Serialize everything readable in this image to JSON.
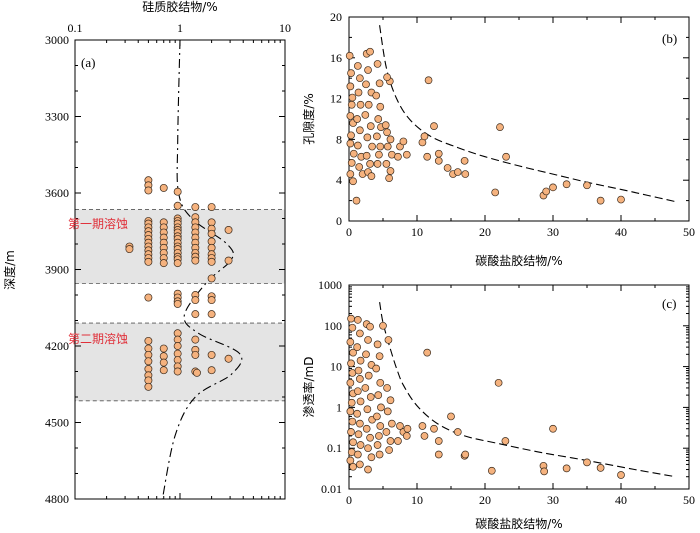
{
  "chart_data": [
    {
      "id": "a",
      "type": "scatter",
      "panel_label": "(a)",
      "xlabel": "硅质胶结物/%",
      "ylabel": "深度/m",
      "x_scale": "log",
      "xlim": [
        0.1,
        10
      ],
      "ylim": [
        3000,
        4800
      ],
      "y_inverted": true,
      "x_axis_position": "top",
      "x_tick_labels": [
        "0.1",
        "1",
        "10"
      ],
      "y_tick_labels": [
        "3000",
        "3300",
        "3600",
        "3900",
        "4200",
        "4500",
        "4800"
      ],
      "zones": [
        {
          "label": "第一期溶蚀",
          "depth_from": 3665,
          "depth_to": 3955
        },
        {
          "label": "第二期溶蚀",
          "depth_from": 4110,
          "depth_to": 4415
        }
      ],
      "trend_curve": {
        "style": "dash-dot",
        "points": [
          [
            1.0,
            3000
          ],
          [
            0.95,
            3400
          ],
          [
            0.97,
            3600
          ],
          [
            1.3,
            3700
          ],
          [
            2.8,
            3800
          ],
          [
            3.1,
            3860
          ],
          [
            1.8,
            3950
          ],
          [
            1.1,
            4080
          ],
          [
            1.5,
            4150
          ],
          [
            3.7,
            4230
          ],
          [
            3.1,
            4310
          ],
          [
            1.4,
            4400
          ],
          [
            0.9,
            4550
          ],
          [
            0.68,
            4800
          ]
        ]
      },
      "points": [
        [
          0.5,
          3550
        ],
        [
          0.5,
          3570
        ],
        [
          0.5,
          3590
        ],
        [
          0.7,
          3580
        ],
        [
          0.95,
          3595
        ],
        [
          0.95,
          3650
        ],
        [
          1.4,
          3655
        ],
        [
          2.0,
          3655
        ],
        [
          0.5,
          3710
        ],
        [
          0.5,
          3720
        ],
        [
          0.5,
          3735
        ],
        [
          0.5,
          3750
        ],
        [
          0.5,
          3765
        ],
        [
          0.5,
          3780
        ],
        [
          0.5,
          3795
        ],
        [
          0.5,
          3810
        ],
        [
          0.5,
          3825
        ],
        [
          0.5,
          3840
        ],
        [
          0.5,
          3855
        ],
        [
          0.5,
          3870
        ],
        [
          0.33,
          3810
        ],
        [
          0.33,
          3820
        ],
        [
          0.7,
          3715
        ],
        [
          0.7,
          3735
        ],
        [
          0.7,
          3755
        ],
        [
          0.7,
          3775
        ],
        [
          0.7,
          3795
        ],
        [
          0.7,
          3815
        ],
        [
          0.7,
          3835
        ],
        [
          0.7,
          3855
        ],
        [
          0.7,
          3875
        ],
        [
          0.95,
          3700
        ],
        [
          0.95,
          3710
        ],
        [
          0.95,
          3720
        ],
        [
          0.95,
          3735
        ],
        [
          0.95,
          3745
        ],
        [
          0.95,
          3755
        ],
        [
          0.95,
          3770
        ],
        [
          0.95,
          3780
        ],
        [
          0.95,
          3795
        ],
        [
          0.95,
          3810
        ],
        [
          0.95,
          3820
        ],
        [
          0.95,
          3835
        ],
        [
          0.95,
          3850
        ],
        [
          0.95,
          3860
        ],
        [
          0.95,
          3875
        ],
        [
          1.4,
          3695
        ],
        [
          1.4,
          3715
        ],
        [
          1.4,
          3735
        ],
        [
          1.4,
          3755
        ],
        [
          1.4,
          3775
        ],
        [
          1.4,
          3795
        ],
        [
          1.4,
          3815
        ],
        [
          1.4,
          3835
        ],
        [
          1.4,
          3850
        ],
        [
          1.4,
          3865
        ],
        [
          2.0,
          3715
        ],
        [
          2.0,
          3740
        ],
        [
          2.0,
          3760
        ],
        [
          2.0,
          3790
        ],
        [
          2.0,
          3815
        ],
        [
          2.0,
          3840
        ],
        [
          2.0,
          3855
        ],
        [
          2.0,
          3870
        ],
        [
          2.9,
          3745
        ],
        [
          2.9,
          3865
        ],
        [
          2.0,
          3935
        ],
        [
          0.5,
          4010
        ],
        [
          0.95,
          3995
        ],
        [
          0.95,
          4010
        ],
        [
          0.95,
          4025
        ],
        [
          0.95,
          4035
        ],
        [
          1.4,
          4000
        ],
        [
          1.4,
          4020
        ],
        [
          2.0,
          4005
        ],
        [
          2.0,
          4020
        ],
        [
          1.4,
          4075
        ],
        [
          2.0,
          4075
        ],
        [
          0.5,
          4180
        ],
        [
          0.5,
          4210
        ],
        [
          0.5,
          4235
        ],
        [
          0.5,
          4260
        ],
        [
          0.5,
          4290
        ],
        [
          0.5,
          4315
        ],
        [
          0.5,
          4335
        ],
        [
          0.5,
          4360
        ],
        [
          0.7,
          4210
        ],
        [
          0.7,
          4240
        ],
        [
          0.7,
          4265
        ],
        [
          0.7,
          4295
        ],
        [
          0.95,
          4150
        ],
        [
          0.95,
          4175
        ],
        [
          0.95,
          4200
        ],
        [
          0.95,
          4230
        ],
        [
          0.95,
          4255
        ],
        [
          0.95,
          4280
        ],
        [
          0.95,
          4300
        ],
        [
          1.4,
          4175
        ],
        [
          1.4,
          4215
        ],
        [
          1.4,
          4235
        ],
        [
          1.4,
          4300
        ],
        [
          1.45,
          4305
        ],
        [
          2.0,
          4235
        ],
        [
          2.0,
          4295
        ],
        [
          2.9,
          4250
        ]
      ]
    },
    {
      "id": "b",
      "type": "scatter",
      "panel_label": "(b)",
      "xlabel": "碳酸盐胶结物/%",
      "ylabel": "孔隙度/%",
      "xlim": [
        0,
        50
      ],
      "ylim": [
        0,
        20
      ],
      "x_tick_labels": [
        "0",
        "10",
        "20",
        "30",
        "40",
        "50"
      ],
      "y_tick_labels": [
        "0",
        "4",
        "8",
        "12",
        "16",
        "20"
      ],
      "trend_curve": {
        "style": "dash",
        "points": [
          [
            4.5,
            19.2
          ],
          [
            5.5,
            15
          ],
          [
            7,
            12
          ],
          [
            9,
            9.9
          ],
          [
            12,
            8.3
          ],
          [
            16,
            7.2
          ],
          [
            20,
            6.3
          ],
          [
            25,
            5.4
          ],
          [
            30,
            4.6
          ],
          [
            35,
            3.8
          ],
          [
            40,
            3.1
          ],
          [
            44,
            2.5
          ],
          [
            48,
            1.9
          ]
        ]
      },
      "points": [
        [
          0.1,
          16.2
        ],
        [
          0.3,
          14.5
        ],
        [
          0.2,
          13.2
        ],
        [
          0.5,
          12.1
        ],
        [
          0.4,
          11.4
        ],
        [
          0.2,
          10.3
        ],
        [
          0.6,
          9.6
        ],
        [
          0.3,
          8.4
        ],
        [
          0.2,
          7.6
        ],
        [
          0.7,
          6.6
        ],
        [
          0.4,
          5.7
        ],
        [
          0.2,
          4.6
        ],
        [
          0.6,
          3.9
        ],
        [
          1.1,
          2.0
        ],
        [
          1.3,
          15.2
        ],
        [
          1.6,
          14.0
        ],
        [
          1.4,
          12.6
        ],
        [
          1.7,
          11.4
        ],
        [
          1.2,
          10.0
        ],
        [
          1.6,
          8.9
        ],
        [
          1.3,
          7.4
        ],
        [
          1.8,
          6.3
        ],
        [
          1.5,
          5.3
        ],
        [
          2.0,
          4.6
        ],
        [
          2.6,
          16.4
        ],
        [
          3.1,
          16.6
        ],
        [
          2.8,
          14.8
        ],
        [
          2.5,
          13.4
        ],
        [
          3.3,
          12.6
        ],
        [
          2.9,
          11.4
        ],
        [
          2.4,
          10.4
        ],
        [
          3.2,
          9.3
        ],
        [
          2.7,
          8.2
        ],
        [
          3.4,
          7.3
        ],
        [
          2.6,
          6.4
        ],
        [
          3.1,
          5.6
        ],
        [
          2.8,
          4.8
        ],
        [
          3.3,
          4.4
        ],
        [
          4.2,
          15.4
        ],
        [
          4.5,
          13.5
        ],
        [
          4.0,
          12.3
        ],
        [
          4.6,
          11.2
        ],
        [
          4.3,
          10.0
        ],
        [
          4.7,
          9.2
        ],
        [
          4.1,
          8.3
        ],
        [
          4.6,
          7.3
        ],
        [
          4.4,
          6.5
        ],
        [
          4.2,
          5.6
        ],
        [
          5.6,
          8.7
        ],
        [
          6.1,
          8.0
        ],
        [
          5.7,
          7.3
        ],
        [
          6.3,
          6.5
        ],
        [
          5.5,
          5.6
        ],
        [
          6.1,
          4.9
        ],
        [
          5.9,
          4.2
        ],
        [
          5.4,
          9.4
        ],
        [
          6.0,
          13.7
        ],
        [
          5.6,
          14.1
        ],
        [
          7.5,
          7.3
        ],
        [
          8.0,
          7.8
        ],
        [
          8.5,
          6.5
        ],
        [
          7.2,
          6.3
        ],
        [
          10.8,
          7.7
        ],
        [
          11.5,
          6.3
        ],
        [
          11.1,
          8.3
        ],
        [
          11.7,
          13.8
        ],
        [
          12.5,
          9.3
        ],
        [
          13.2,
          6.6
        ],
        [
          13.2,
          5.9
        ],
        [
          14.5,
          5.2
        ],
        [
          15.3,
          4.6
        ],
        [
          16.0,
          4.8
        ],
        [
          17.0,
          5.9
        ],
        [
          17.1,
          4.6
        ],
        [
          21.5,
          2.8
        ],
        [
          22.2,
          9.2
        ],
        [
          23.1,
          6.3
        ],
        [
          28.6,
          2.5
        ],
        [
          29.0,
          2.9
        ],
        [
          30.0,
          3.3
        ],
        [
          32.0,
          3.6
        ],
        [
          35.0,
          3.5
        ],
        [
          37.0,
          2.0
        ],
        [
          40.0,
          2.1
        ]
      ]
    },
    {
      "id": "c",
      "type": "scatter",
      "panel_label": "(c)",
      "xlabel": "碳酸盐胶结物/%",
      "ylabel": "渗透率/mD",
      "y_scale": "log",
      "xlim": [
        0,
        50
      ],
      "ylim": [
        0.01,
        1000
      ],
      "x_tick_labels": [
        "0",
        "10",
        "20",
        "30",
        "40",
        "50"
      ],
      "y_tick_labels": [
        "0.01",
        "0.1",
        "1",
        "10",
        "100",
        "1000"
      ],
      "trend_curve": {
        "style": "dash",
        "points": [
          [
            4.5,
            380
          ],
          [
            5,
            120
          ],
          [
            6,
            30
          ],
          [
            7,
            9
          ],
          [
            8,
            3.5
          ],
          [
            10,
            1.1
          ],
          [
            13,
            0.4
          ],
          [
            17,
            0.2
          ],
          [
            22,
            0.13
          ],
          [
            28,
            0.08
          ],
          [
            35,
            0.05
          ],
          [
            42,
            0.03
          ],
          [
            48,
            0.02
          ]
        ]
      },
      "points": [
        [
          0.3,
          150
        ],
        [
          0.5,
          90
        ],
        [
          0.2,
          40
        ],
        [
          0.6,
          22
        ],
        [
          0.3,
          12
        ],
        [
          0.5,
          7
        ],
        [
          0.2,
          4
        ],
        [
          0.6,
          2.2
        ],
        [
          0.4,
          1.3
        ],
        [
          0.2,
          0.8
        ],
        [
          0.5,
          0.45
        ],
        [
          0.3,
          0.25
        ],
        [
          0.6,
          0.14
        ],
        [
          0.4,
          0.08
        ],
        [
          0.2,
          0.05
        ],
        [
          0.6,
          0.035
        ],
        [
          1.3,
          140
        ],
        [
          1.6,
          65
        ],
        [
          1.2,
          30
        ],
        [
          1.7,
          14
        ],
        [
          1.4,
          8
        ],
        [
          1.6,
          5
        ],
        [
          1.3,
          2.5
        ],
        [
          1.7,
          1.4
        ],
        [
          1.2,
          0.7
        ],
        [
          1.6,
          0.4
        ],
        [
          1.4,
          0.22
        ],
        [
          1.7,
          0.12
        ],
        [
          1.3,
          0.07
        ],
        [
          1.6,
          0.04
        ],
        [
          2.6,
          110
        ],
        [
          3.1,
          95
        ],
        [
          2.8,
          45
        ],
        [
          2.5,
          20
        ],
        [
          3.3,
          11
        ],
        [
          2.9,
          6
        ],
        [
          2.4,
          3
        ],
        [
          3.2,
          1.8
        ],
        [
          2.7,
          0.9
        ],
        [
          3.4,
          0.5
        ],
        [
          2.6,
          0.3
        ],
        [
          3.1,
          0.18
        ],
        [
          2.8,
          0.1
        ],
        [
          3.3,
          0.06
        ],
        [
          2.8,
          0.03
        ],
        [
          4.2,
          35
        ],
        [
          4.5,
          18
        ],
        [
          4.0,
          9
        ],
        [
          4.6,
          4
        ],
        [
          4.3,
          2
        ],
        [
          4.7,
          1
        ],
        [
          4.1,
          0.6
        ],
        [
          4.6,
          0.35
        ],
        [
          4.4,
          0.2
        ],
        [
          4.2,
          0.12
        ],
        [
          4.5,
          0.07
        ],
        [
          5.0,
          100
        ],
        [
          5.8,
          45
        ],
        [
          5.6,
          3
        ],
        [
          6.1,
          1.5
        ],
        [
          5.7,
          0.8
        ],
        [
          6.3,
          0.4
        ],
        [
          5.5,
          0.25
        ],
        [
          6.1,
          0.15
        ],
        [
          5.9,
          0.09
        ],
        [
          7.5,
          0.35
        ],
        [
          8.0,
          0.25
        ],
        [
          8.5,
          0.2
        ],
        [
          7.2,
          0.15
        ],
        [
          8.6,
          0.3
        ],
        [
          10.8,
          0.35
        ],
        [
          11.5,
          22
        ],
        [
          11.1,
          0.2
        ],
        [
          12.5,
          0.3
        ],
        [
          13.2,
          0.15
        ],
        [
          13.2,
          0.07
        ],
        [
          15.0,
          0.6
        ],
        [
          16.0,
          0.25
        ],
        [
          17.0,
          0.065
        ],
        [
          17.1,
          0.07
        ],
        [
          21.0,
          0.028
        ],
        [
          22.0,
          4
        ],
        [
          23.0,
          0.15
        ],
        [
          28.6,
          0.037
        ],
        [
          28.7,
          0.027
        ],
        [
          30.0,
          0.3
        ],
        [
          32.0,
          0.032
        ],
        [
          35.0,
          0.045
        ],
        [
          37.0,
          0.033
        ],
        [
          40.0,
          0.022
        ]
      ]
    }
  ]
}
